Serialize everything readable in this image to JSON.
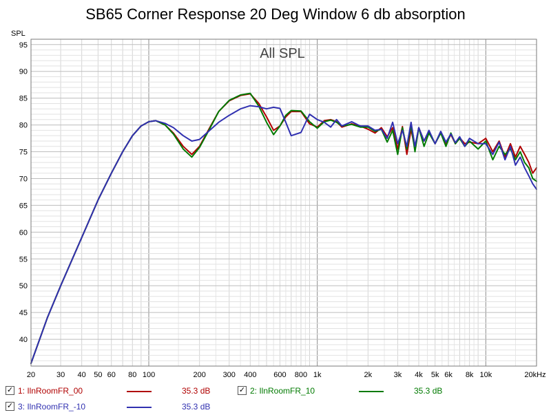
{
  "chart_data": {
    "type": "line",
    "title": "SB65 Corner Response 20 Deg Window 6 db absorption",
    "subtitle": "All SPL",
    "ylabel": "SPL",
    "xlabel": "",
    "x_scale": "log",
    "xlim": [
      20,
      20000
    ],
    "ylim": [
      35,
      96
    ],
    "grid": true,
    "x_ticks": [
      20,
      30,
      40,
      50,
      60,
      80,
      100,
      200,
      300,
      400,
      600,
      800,
      1000,
      2000,
      3000,
      4000,
      5000,
      6000,
      8000,
      10000,
      20000
    ],
    "x_tick_labels": [
      "20",
      "30",
      "40",
      "50",
      "60",
      "80",
      "100",
      "200",
      "300",
      "400",
      "600",
      "800",
      "1k",
      "2k",
      "3k",
      "4k",
      "5k",
      "6k",
      "8k",
      "10k",
      "20kHz"
    ],
    "y_ticks": [
      40,
      45,
      50,
      55,
      60,
      65,
      70,
      75,
      80,
      85,
      90,
      95
    ],
    "y_tick_labels": [
      "40",
      "45",
      "50",
      "55",
      "60",
      "65",
      "70",
      "75",
      "80",
      "85",
      "90",
      "95"
    ],
    "series": [
      {
        "name": "1: IlnRoomFR_00",
        "color": "#b00000",
        "legend_value": "35.3 dB",
        "x": [
          20,
          25,
          30,
          40,
          50,
          60,
          70,
          80,
          90,
          100,
          110,
          125,
          140,
          160,
          180,
          200,
          230,
          260,
          300,
          350,
          400,
          450,
          500,
          550,
          600,
          650,
          700,
          800,
          900,
          1000,
          1100,
          1200,
          1300,
          1400,
          1600,
          1800,
          2000,
          2200,
          2400,
          2600,
          2800,
          3000,
          3200,
          3400,
          3600,
          3800,
          4000,
          4300,
          4600,
          5000,
          5400,
          5800,
          6200,
          6600,
          7000,
          7500,
          8000,
          9000,
          10000,
          11000,
          12000,
          13000,
          14000,
          15000,
          16000,
          17000,
          18000,
          19000,
          20000
        ],
        "y": [
          35.5,
          44,
          50,
          59,
          66,
          71,
          75,
          78,
          79.8,
          80.6,
          80.8,
          80,
          78.5,
          76,
          74.5,
          76,
          79.5,
          82.5,
          84.5,
          85.5,
          85.8,
          84,
          81.5,
          79,
          79.8,
          81.5,
          82.5,
          82.5,
          80.2,
          79.6,
          80.8,
          81,
          80.6,
          79.6,
          80.2,
          79.8,
          79.2,
          78.5,
          79.5,
          77.8,
          79.5,
          75.5,
          79.7,
          74.5,
          79.2,
          75.5,
          79.5,
          77,
          78.8,
          76.5,
          78.6,
          76.5,
          78.2,
          76.5,
          77.6,
          76.5,
          76.8,
          76.5,
          77.5,
          75,
          77,
          74,
          76.5,
          74,
          76,
          74.5,
          73,
          71,
          72
        ]
      },
      {
        "name": "2: IlnRoomFR_10",
        "color": "#007a00",
        "legend_value": "35.3 dB",
        "x": [
          20,
          25,
          30,
          40,
          50,
          60,
          70,
          80,
          90,
          100,
          110,
          125,
          140,
          160,
          180,
          200,
          230,
          260,
          300,
          350,
          400,
          450,
          500,
          550,
          600,
          650,
          700,
          800,
          900,
          1000,
          1100,
          1200,
          1300,
          1400,
          1600,
          1800,
          2000,
          2200,
          2400,
          2600,
          2800,
          3000,
          3200,
          3400,
          3600,
          3800,
          4000,
          4300,
          4600,
          5000,
          5400,
          5800,
          6200,
          6600,
          7000,
          7500,
          8000,
          9000,
          10000,
          11000,
          12000,
          13000,
          14000,
          15000,
          16000,
          17000,
          18000,
          19000,
          20000
        ],
        "y": [
          35.5,
          44,
          50,
          59,
          66,
          71,
          75,
          78,
          79.8,
          80.6,
          80.8,
          80,
          78.3,
          75.5,
          74,
          75.8,
          79.3,
          82.5,
          84.6,
          85.6,
          85.9,
          83.5,
          80.5,
          78.2,
          79.8,
          81.8,
          82.7,
          82.6,
          80.6,
          79.4,
          80.6,
          80.9,
          80.5,
          79.8,
          80.1,
          79.6,
          79.6,
          78.8,
          79.2,
          76.8,
          79,
          74.5,
          79.5,
          75.5,
          80,
          75,
          79.5,
          76,
          78.5,
          76.5,
          78.5,
          76,
          78.5,
          76.5,
          77.5,
          76,
          77,
          75.5,
          77,
          73.5,
          76,
          74.5,
          75.5,
          73.5,
          75,
          73,
          72,
          70,
          69.5
        ]
      },
      {
        "name": "3: IlnRoomFR_-10",
        "color": "#3030b0",
        "legend_value": "35.3 dB",
        "x": [
          20,
          25,
          30,
          40,
          50,
          60,
          70,
          80,
          90,
          100,
          110,
          125,
          140,
          160,
          180,
          200,
          230,
          260,
          300,
          350,
          400,
          450,
          500,
          550,
          600,
          650,
          700,
          800,
          900,
          1000,
          1100,
          1200,
          1300,
          1400,
          1600,
          1800,
          2000,
          2200,
          2400,
          2600,
          2800,
          3000,
          3200,
          3400,
          3600,
          3800,
          4000,
          4300,
          4600,
          5000,
          5400,
          5800,
          6200,
          6600,
          7000,
          7500,
          8000,
          9000,
          10000,
          11000,
          12000,
          13000,
          14000,
          15000,
          16000,
          17000,
          18000,
          19000,
          20000
        ],
        "y": [
          35.5,
          44,
          50,
          59,
          66,
          71,
          75,
          78,
          79.8,
          80.6,
          80.8,
          80.3,
          79.5,
          78,
          77,
          77.3,
          79,
          80.5,
          81.8,
          83,
          83.6,
          83.4,
          83,
          83.3,
          83.1,
          80.5,
          78,
          78.6,
          82,
          81,
          80.5,
          79.6,
          81,
          79.8,
          80.6,
          79.8,
          79.8,
          79,
          79.2,
          77.5,
          80.5,
          76.5,
          79,
          76,
          80.5,
          76,
          79.5,
          77,
          79,
          76.5,
          78.8,
          76.8,
          78.3,
          76.7,
          77.8,
          76,
          77.5,
          76.5,
          76.5,
          74.5,
          76.8,
          73.5,
          76,
          72.5,
          74,
          72,
          70.5,
          69,
          68
        ]
      }
    ]
  }
}
